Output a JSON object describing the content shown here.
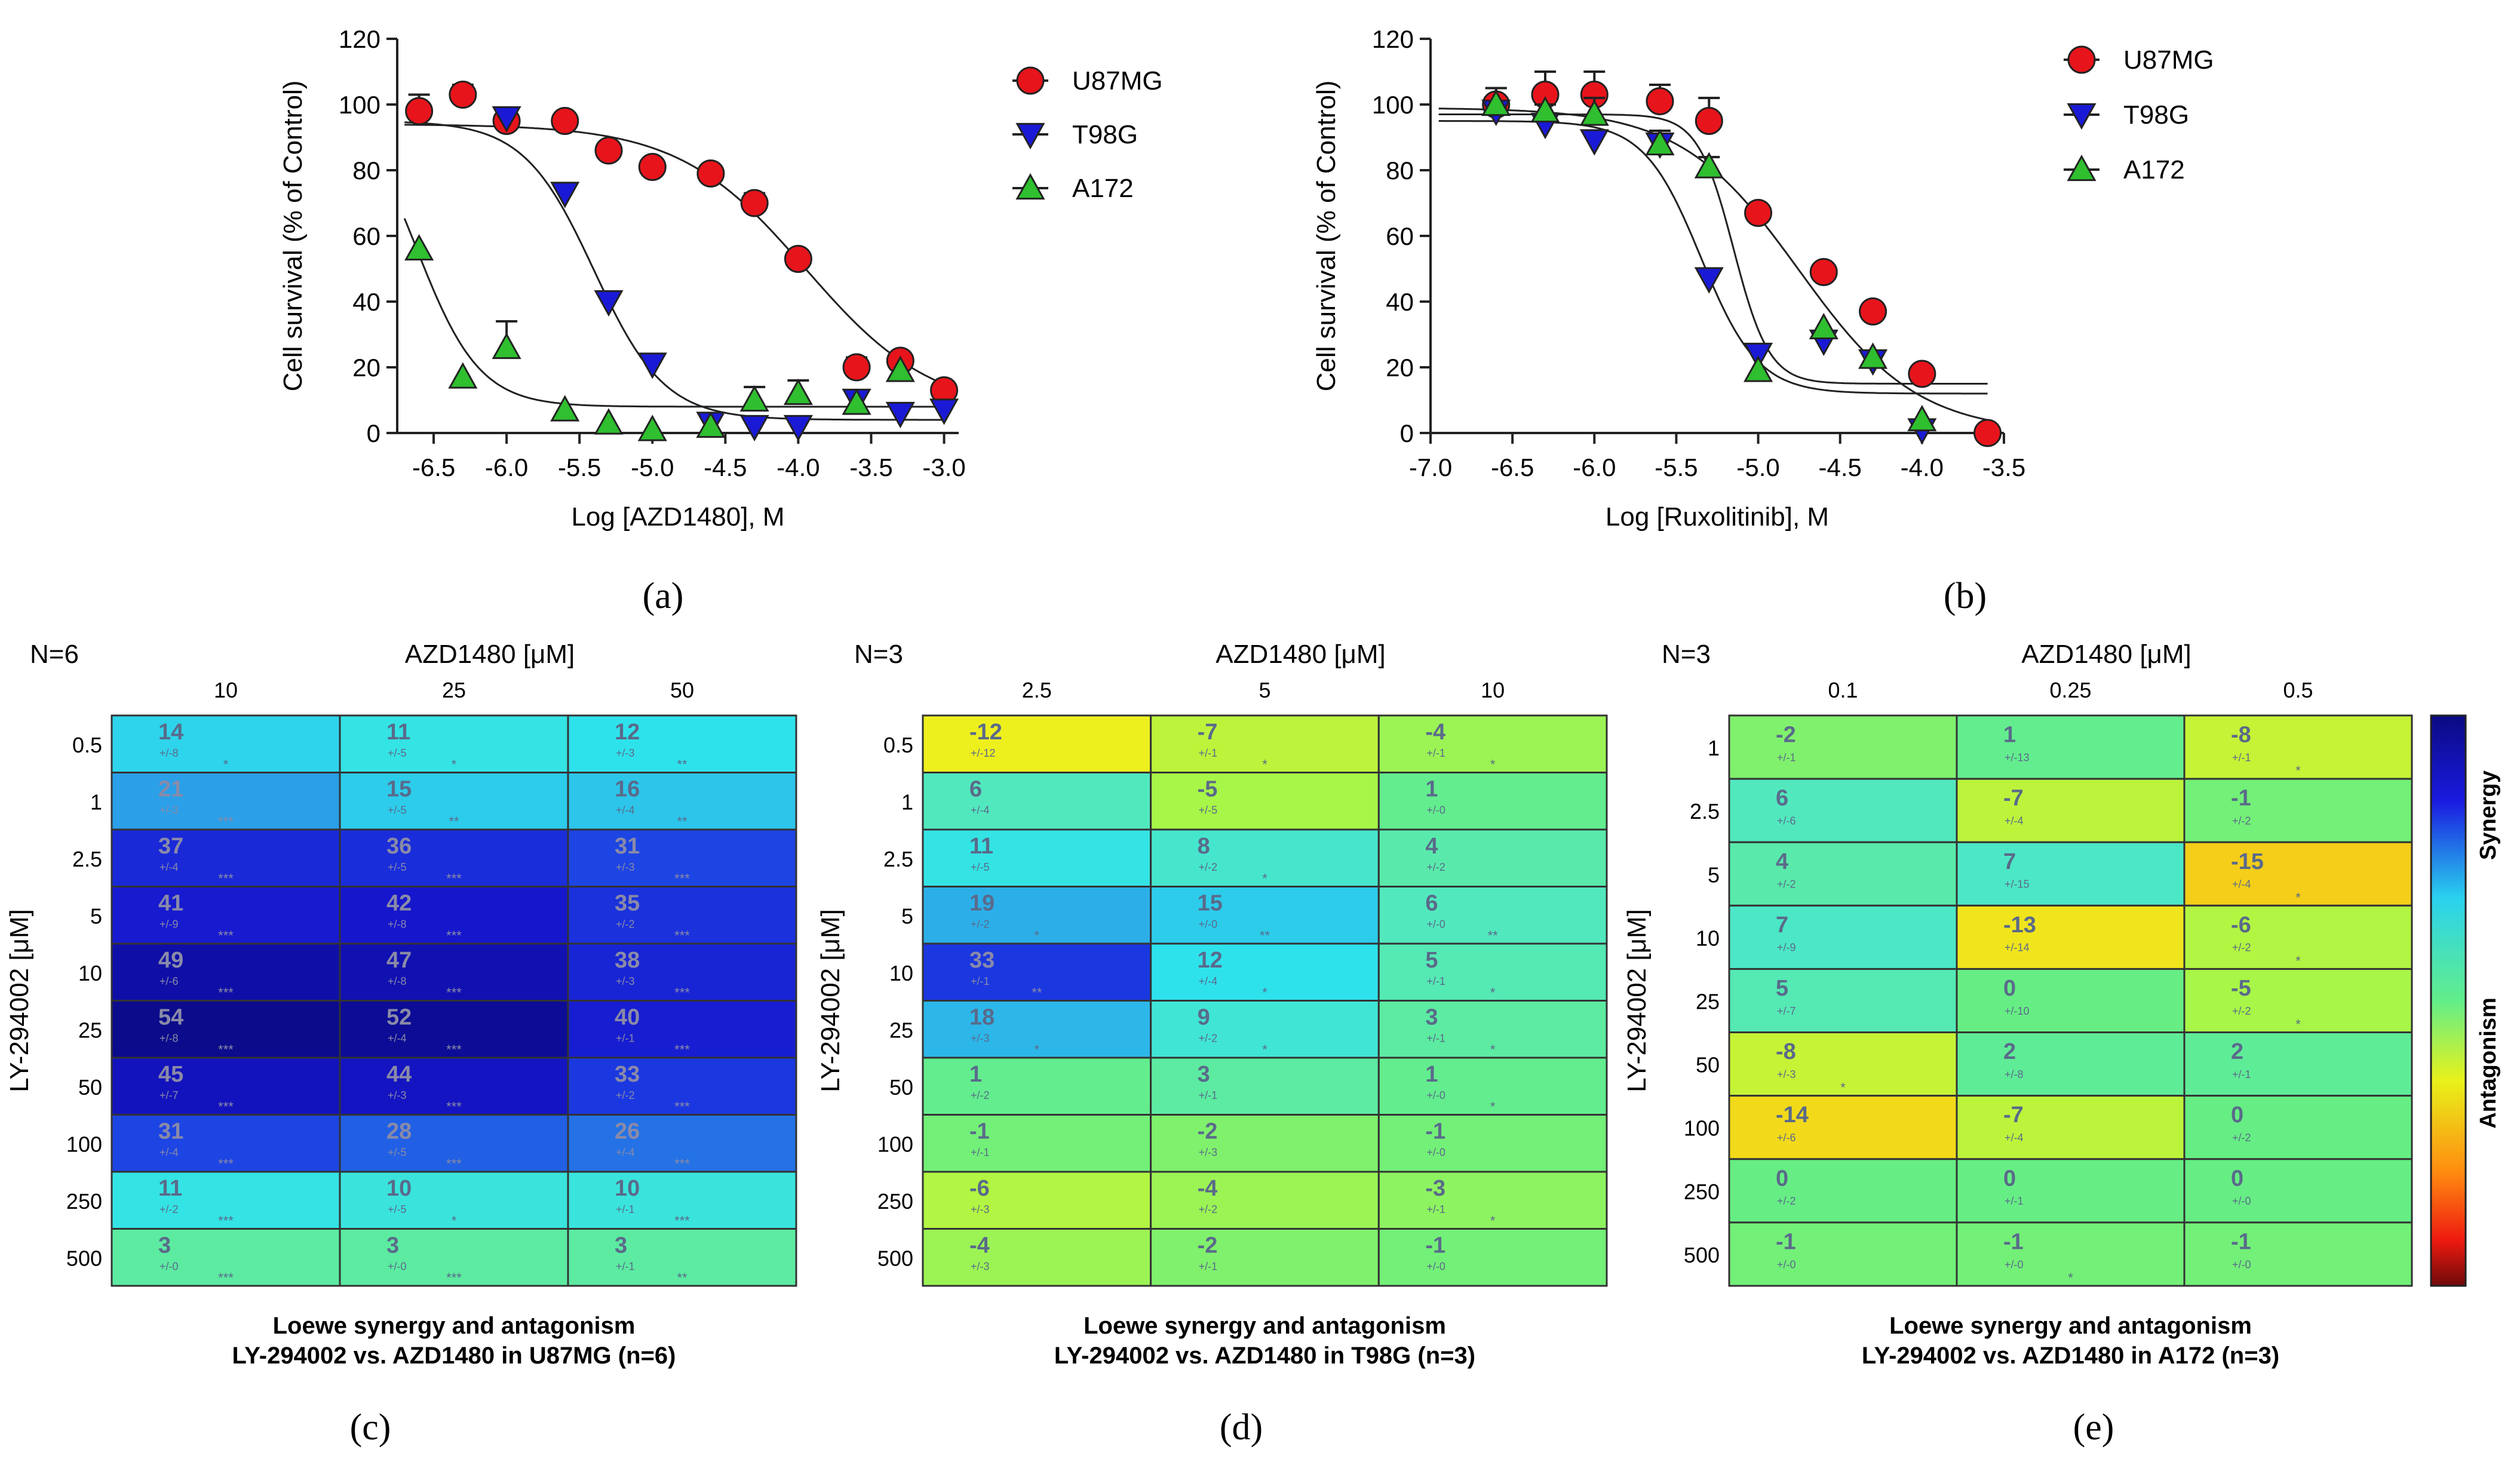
{
  "panel_labels": [
    "(a)",
    "(b)",
    "(c)",
    "(d)",
    "(e)"
  ],
  "chart_data": [
    {
      "panel": "(a)",
      "type": "scatter",
      "xlabel": "Log [AZD1480], M",
      "ylabel": "Cell survival (% of Control)",
      "xlim": [
        -6.75,
        -2.9
      ],
      "ylim": [
        0,
        120
      ],
      "xticks": [
        -6.5,
        -6.0,
        -5.5,
        -5.0,
        -4.5,
        -4.0,
        -3.5,
        -3.0
      ],
      "xtick_labels": [
        "-6.5",
        "-6.0",
        "-5.5",
        "-5.0",
        "-4.5",
        "-4.0",
        "-3.5",
        "-3.0"
      ],
      "yticks": [
        0,
        20,
        40,
        60,
        80,
        100,
        120
      ],
      "ytick_labels": [
        "0",
        "20",
        "40",
        "60",
        "80",
        "100",
        "120"
      ],
      "legend_position": "right",
      "series": [
        {
          "name": "U87MG",
          "marker": "circle",
          "color": "#e8141b",
          "x": [
            -6.6,
            -6.3,
            -6.0,
            -5.6,
            -5.3,
            -5.0,
            -4.6,
            -4.3,
            -4.0,
            -3.6,
            -3.3,
            -3.0
          ],
          "y": [
            98,
            103,
            95,
            95,
            86,
            81,
            79,
            70,
            53,
            20,
            22,
            13
          ],
          "err": [
            5,
            3,
            2,
            0,
            0,
            0,
            0,
            3,
            0,
            3,
            0,
            0
          ],
          "fit": {
            "top": 94,
            "bottom": 6,
            "logec50": -3.95,
            "hill": -1.0
          }
        },
        {
          "name": "T98G",
          "marker": "triangle-down",
          "color": "#1a1ad6",
          "x": [
            -6.0,
            -5.6,
            -5.3,
            -5.0,
            -4.6,
            -4.3,
            -4.0,
            -3.6,
            -3.3,
            -3.0
          ],
          "y": [
            96,
            73,
            40,
            21,
            3,
            2,
            2,
            10,
            6,
            7
          ],
          "err": [
            2,
            0,
            0,
            2,
            0,
            0,
            0,
            2,
            0,
            0
          ],
          "fit": {
            "top": 95,
            "bottom": 4,
            "logec50": -5.4,
            "hill": -1.8
          }
        },
        {
          "name": "A172",
          "marker": "triangle-up",
          "color": "#2fbf2f",
          "x": [
            -6.6,
            -6.3,
            -6.0,
            -5.6,
            -5.3,
            -5.0,
            -4.6,
            -4.3,
            -4.0,
            -3.6,
            -3.3
          ],
          "y": [
            56,
            17,
            26,
            7,
            3,
            1,
            2,
            10,
            12,
            9,
            19
          ],
          "err": [
            0,
            0,
            8,
            0,
            0,
            0,
            0,
            4,
            4,
            0,
            0
          ],
          "fit": {
            "top": 105,
            "bottom": 8,
            "logec50": -6.62,
            "hill": -2.0
          }
        }
      ]
    },
    {
      "panel": "(b)",
      "type": "scatter",
      "xlabel": "Log [Ruxolitinib], M",
      "ylabel": "Cell survival (% of Control)",
      "xlim": [
        -7.0,
        -3.5
      ],
      "ylim": [
        0,
        120
      ],
      "xticks": [
        -7.0,
        -6.5,
        -6.0,
        -5.5,
        -5.0,
        -4.5,
        -4.0,
        -3.5
      ],
      "xtick_labels": [
        "-7.0",
        "-6.5",
        "-6.0",
        "-5.5",
        "-5.0",
        "-4.5",
        "-4.0",
        "-3.5"
      ],
      "yticks": [
        0,
        20,
        40,
        60,
        80,
        100,
        120
      ],
      "ytick_labels": [
        "0",
        "20",
        "40",
        "60",
        "80",
        "100",
        "120"
      ],
      "legend_position": "right",
      "series": [
        {
          "name": "U87MG",
          "marker": "circle",
          "color": "#e8141b",
          "x": [
            -6.6,
            -6.3,
            -6.0,
            -5.6,
            -5.3,
            -5.0,
            -4.6,
            -4.3,
            -4.0,
            -3.6
          ],
          "y": [
            100,
            103,
            103,
            101,
            95,
            67,
            49,
            37,
            18,
            0
          ],
          "err": [
            5,
            7,
            7,
            5,
            7,
            0,
            0,
            0,
            0,
            0
          ],
          "fit": {
            "top": 99,
            "bottom": 0,
            "logec50": -4.75,
            "hill": -1.2
          }
        },
        {
          "name": "T98G",
          "marker": "triangle-down",
          "color": "#1a1ad6",
          "x": [
            -6.6,
            -6.3,
            -6.0,
            -5.6,
            -5.3,
            -5.0,
            -4.6,
            -4.3,
            -4.0
          ],
          "y": [
            98,
            94,
            89,
            88,
            47,
            24,
            28,
            22,
            1
          ],
          "err": [
            3,
            2,
            0,
            4,
            0,
            0,
            0,
            0,
            0
          ],
          "fit": {
            "top": 95,
            "bottom": 12,
            "logec50": -5.35,
            "hill": -2.5
          }
        },
        {
          "name": "A172",
          "marker": "triangle-up",
          "color": "#2fbf2f",
          "x": [
            -6.6,
            -6.3,
            -6.0,
            -5.6,
            -5.3,
            -5.0,
            -4.6,
            -4.3,
            -4.0
          ],
          "y": [
            100,
            98,
            97,
            88,
            81,
            19,
            32,
            23,
            4
          ],
          "err": [
            5,
            2,
            5,
            4,
            3,
            0,
            0,
            0,
            0
          ],
          "fit": {
            "top": 97,
            "bottom": 15,
            "logec50": -5.15,
            "hill": -4.0
          }
        }
      ]
    },
    {
      "panel": "(c)",
      "type": "heatmap",
      "n_label": "N=6",
      "col_title": "AZD1480 [μM]",
      "col_labels": [
        "10",
        "25",
        "50"
      ],
      "row_title": "LY-294002 [μM]",
      "row_labels": [
        "0.5",
        "1",
        "2.5",
        "5",
        "10",
        "25",
        "50",
        "100",
        "250",
        "500"
      ],
      "values": [
        [
          14,
          11,
          12
        ],
        [
          21,
          15,
          16
        ],
        [
          37,
          36,
          31
        ],
        [
          41,
          42,
          35
        ],
        [
          49,
          47,
          38
        ],
        [
          54,
          52,
          40
        ],
        [
          45,
          44,
          33
        ],
        [
          31,
          28,
          26
        ],
        [
          11,
          10,
          10
        ],
        [
          3,
          3,
          3
        ]
      ],
      "sd": [
        [
          "+/-8",
          "+/-5",
          "+/-3"
        ],
        [
          "+/-3",
          "+/-5",
          "+/-4"
        ],
        [
          "+/-4",
          "+/-5",
          "+/-3"
        ],
        [
          "+/-9",
          "+/-8",
          "+/-2"
        ],
        [
          "+/-6",
          "+/-8",
          "+/-3"
        ],
        [
          "+/-8",
          "+/-4",
          "+/-1"
        ],
        [
          "+/-7",
          "+/-3",
          "+/-2"
        ],
        [
          "+/-4",
          "+/-5",
          "+/-4"
        ],
        [
          "+/-2",
          "+/-5",
          "+/-1"
        ],
        [
          "+/-0",
          "+/-0",
          "+/-1"
        ]
      ],
      "sig": [
        [
          "*",
          "*",
          "**"
        ],
        [
          "***",
          "**",
          "**"
        ],
        [
          "***",
          "***",
          "***"
        ],
        [
          "***",
          "***",
          "***"
        ],
        [
          "***",
          "***",
          "***"
        ],
        [
          "***",
          "***",
          "***"
        ],
        [
          "***",
          "***",
          "***"
        ],
        [
          "***",
          "***",
          "***"
        ],
        [
          "***",
          "*",
          "***"
        ],
        [
          "***",
          "***",
          "**"
        ]
      ],
      "caption_line1": "Loewe synergy and antagonism",
      "caption_line2": "LY-294002 vs. AZD1480 in U87MG (n=6)"
    },
    {
      "panel": "(d)",
      "type": "heatmap",
      "n_label": "N=3",
      "col_title": "AZD1480 [μM]",
      "col_labels": [
        "2.5",
        "5",
        "10"
      ],
      "row_title": "LY-294002 [μM]",
      "row_labels": [
        "0.5",
        "1",
        "2.5",
        "5",
        "10",
        "25",
        "50",
        "100",
        "250",
        "500"
      ],
      "values": [
        [
          -12,
          -7,
          -4
        ],
        [
          6,
          -5,
          1
        ],
        [
          11,
          8,
          4
        ],
        [
          19,
          15,
          6
        ],
        [
          33,
          12,
          5
        ],
        [
          18,
          9,
          3
        ],
        [
          1,
          3,
          1
        ],
        [
          -1,
          -2,
          -1
        ],
        [
          -6,
          -4,
          -3
        ],
        [
          -4,
          -2,
          -1
        ]
      ],
      "sd": [
        [
          "+/-12",
          "+/-1",
          "+/-1"
        ],
        [
          "+/-4",
          "+/-5",
          "+/-0"
        ],
        [
          "+/-5",
          "+/-2",
          "+/-2"
        ],
        [
          "+/-2",
          "+/-0",
          "+/-0"
        ],
        [
          "+/-1",
          "+/-4",
          "+/-1"
        ],
        [
          "+/-3",
          "+/-2",
          "+/-1"
        ],
        [
          "+/-2",
          "+/-1",
          "+/-0"
        ],
        [
          "+/-1",
          "+/-3",
          "+/-0"
        ],
        [
          "+/-3",
          "+/-2",
          "+/-1"
        ],
        [
          "+/-3",
          "+/-1",
          "+/-0"
        ]
      ],
      "sig": [
        [
          "",
          "*",
          "*"
        ],
        [
          "",
          "",
          ""
        ],
        [
          "",
          "*",
          ""
        ],
        [
          "*",
          "**",
          "**"
        ],
        [
          "**",
          "*",
          "*"
        ],
        [
          "*",
          "*",
          "*"
        ],
        [
          "",
          "",
          "*"
        ],
        [
          "",
          "",
          ""
        ],
        [
          "",
          "",
          "*"
        ],
        [
          "",
          "",
          ""
        ]
      ],
      "caption_line1": "Loewe synergy and antagonism",
      "caption_line2": "LY-294002 vs. AZD1480 in T98G (n=3)"
    },
    {
      "panel": "(e)",
      "type": "heatmap",
      "n_label": "N=3",
      "col_title": "AZD1480 [μM]",
      "col_labels": [
        "0.1",
        "0.25",
        "0.5"
      ],
      "row_title": "LY-294002 [μM]",
      "row_labels": [
        "1",
        "2.5",
        "5",
        "10",
        "25",
        "50",
        "100",
        "250",
        "500"
      ],
      "values": [
        [
          -2,
          1,
          -8
        ],
        [
          6,
          -7,
          -1
        ],
        [
          4,
          7,
          -15
        ],
        [
          7,
          -13,
          -6
        ],
        [
          5,
          0,
          -5
        ],
        [
          -8,
          2,
          2
        ],
        [
          -14,
          -7,
          0
        ],
        [
          0,
          0,
          0
        ],
        [
          -1,
          -1,
          -1
        ]
      ],
      "sd": [
        [
          "+/-1",
          "+/-13",
          "+/-1"
        ],
        [
          "+/-6",
          "+/-4",
          "+/-2"
        ],
        [
          "+/-2",
          "+/-15",
          "+/-4"
        ],
        [
          "+/-9",
          "+/-14",
          "+/-2"
        ],
        [
          "+/-7",
          "+/-10",
          "+/-2"
        ],
        [
          "+/-3",
          "+/-8",
          "+/-1"
        ],
        [
          "+/-6",
          "+/-4",
          "+/-2"
        ],
        [
          "+/-2",
          "+/-1",
          "+/-0"
        ],
        [
          "+/-0",
          "+/-0",
          "+/-0"
        ]
      ],
      "sig": [
        [
          "",
          "",
          "*"
        ],
        [
          "",
          "",
          ""
        ],
        [
          "",
          "",
          "*"
        ],
        [
          "",
          "",
          "*"
        ],
        [
          "",
          "",
          "*"
        ],
        [
          "*",
          "",
          ""
        ],
        [
          "",
          "",
          ""
        ],
        [
          "",
          "",
          ""
        ],
        [
          "",
          "*",
          ""
        ]
      ],
      "colorbar_labels": [
        "Synergy",
        "Antagonism"
      ],
      "caption_line1": "Loewe synergy and antagonism",
      "caption_line2": "LY-294002 vs. AZD1480 in A172 (n=3)"
    }
  ]
}
